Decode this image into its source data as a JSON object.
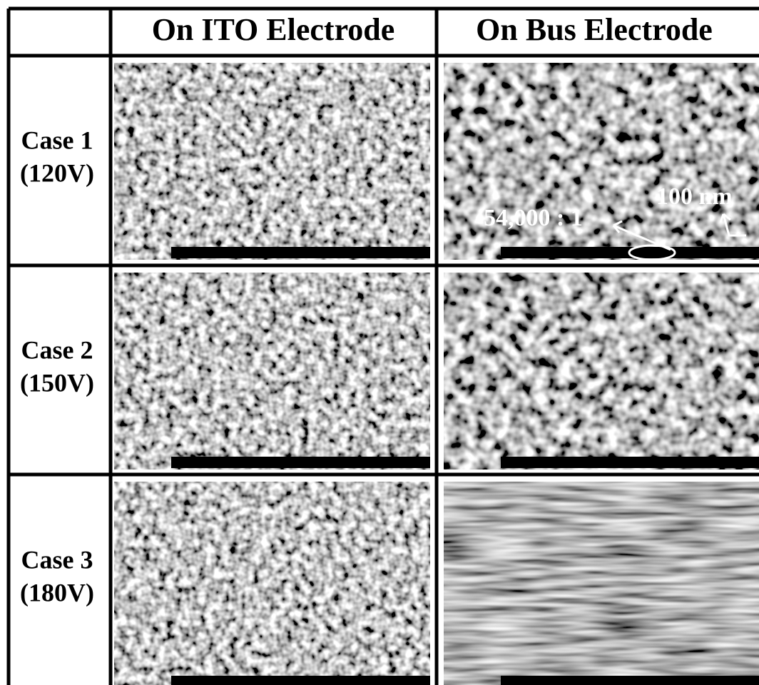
{
  "header": {
    "columns": [
      "On ITO Electrode",
      "On Bus Electrode"
    ]
  },
  "rows": [
    {
      "case": "Case 1",
      "voltage": "(120V)"
    },
    {
      "case": "Case 2",
      "voltage": "(150V)"
    },
    {
      "case": "Case 3",
      "voltage": "(180V)"
    }
  ],
  "annotations": {
    "scale": "100 nm",
    "magnification": "54,000 : 1"
  }
}
